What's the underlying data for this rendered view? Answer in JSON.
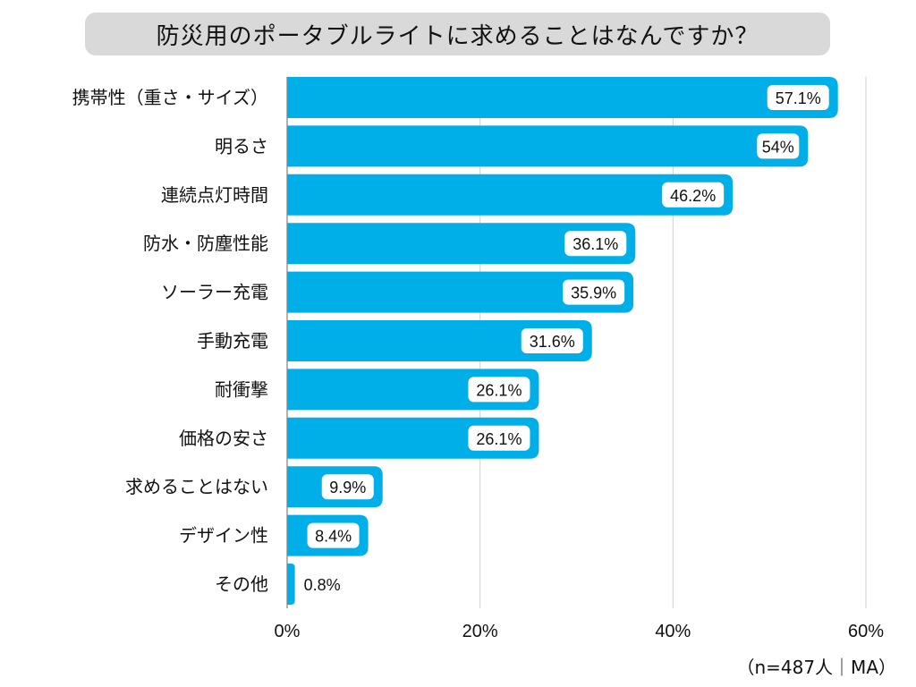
{
  "chart_data": {
    "type": "bar",
    "orientation": "horizontal",
    "title": "防災用のポータブルライトに求めることはなんですか？",
    "categories": [
      "携帯性（重さ・サイズ）",
      "明るさ",
      "連続点灯時間",
      "防水・防塵性能",
      "ソーラー充電",
      "手動充電",
      "耐衝撃",
      "価格の安さ",
      "求めることはない",
      "デザイン性",
      "その他"
    ],
    "values": [
      57.1,
      54,
      46.2,
      36.1,
      35.9,
      31.6,
      26.1,
      26.1,
      9.9,
      8.4,
      0.8
    ],
    "value_labels": [
      "57.1%",
      "54%",
      "46.2%",
      "36.1%",
      "35.9%",
      "31.6%",
      "26.1%",
      "26.1%",
      "9.9%",
      "8.4%",
      "0.8%"
    ],
    "xlim": [
      0,
      60
    ],
    "xticks": [
      0,
      20,
      40,
      60
    ],
    "xtick_labels": [
      "0%",
      "20%",
      "40%",
      "60%"
    ],
    "grid": true,
    "bar_color": "#00aee8",
    "note": "（n=487人｜MA）"
  }
}
